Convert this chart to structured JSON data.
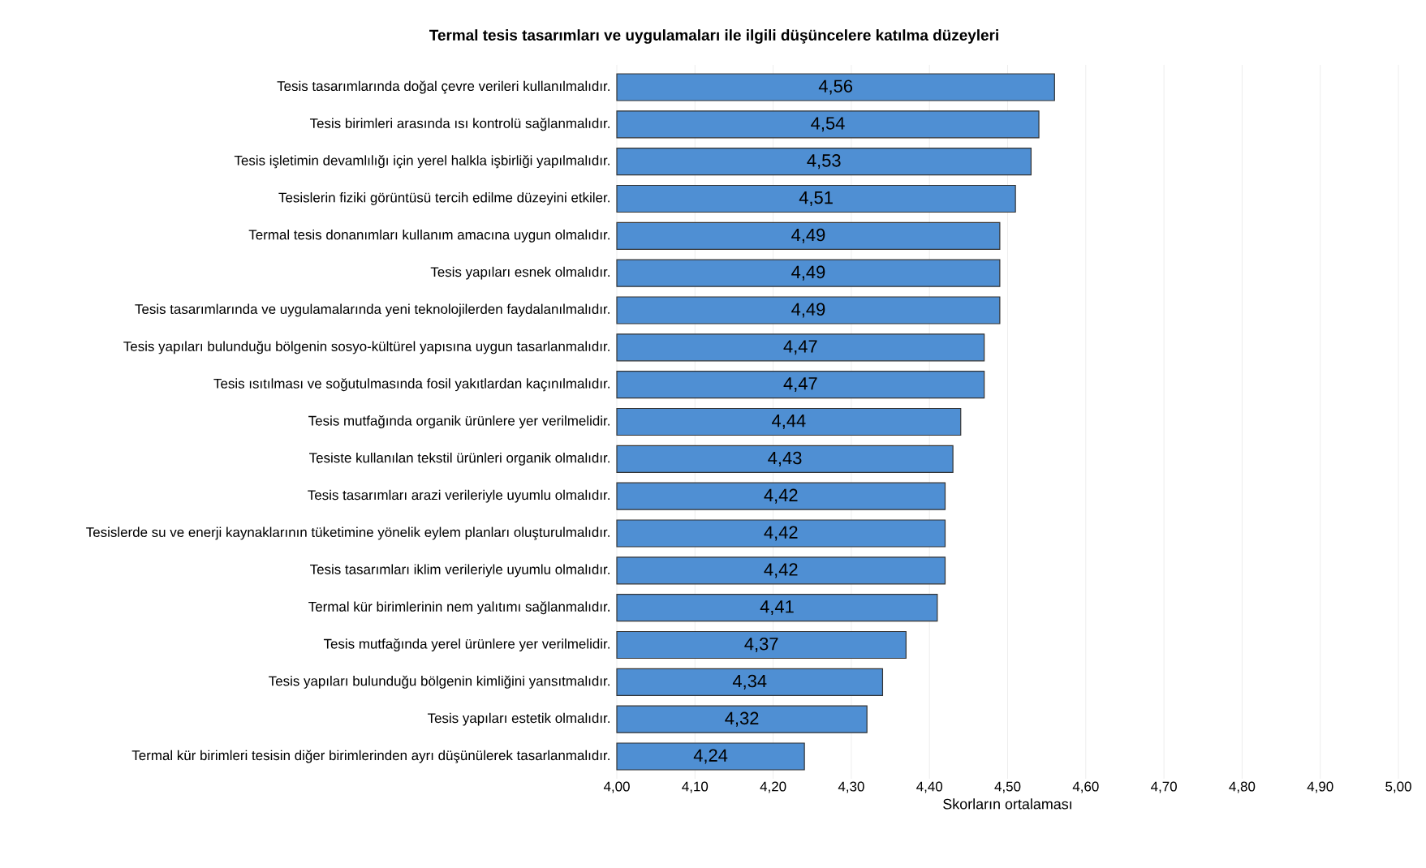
{
  "chart_data": {
    "type": "bar",
    "orientation": "horizontal",
    "title": "Termal  tesis tasarımları ve uygulamaları ile ilgili düşüncelere katılma düzeyleri",
    "xlabel": "Skorların ortalaması",
    "categories": [
      "Tesis tasarımlarında doğal çevre verileri kullanılmalıdır.",
      "Tesis birimleri arasında ısı kontrolü sağlanmalıdır.",
      "Tesis işletimin devamlılığı için yerel halkla işbirliği yapılmalıdır.",
      "Tesislerin fiziki görüntüsü tercih edilme düzeyini etkiler.",
      "Termal tesis donanımları kullanım amacına uygun olmalıdır.",
      "Tesis yapıları esnek olmalıdır.",
      "Tesis tasarımlarında ve uygulamalarında yeni teknolojilerden faydalanılmalıdır.",
      "Tesis yapıları bulunduğu bölgenin sosyo-kültürel yapısına uygun tasarlanmalıdır.",
      "Tesis ısıtılması ve soğutulmasında fosil yakıtlardan kaçınılmalıdır.",
      "Tesis mutfağında organik ürünlere yer verilmelidir.",
      "Tesiste kullanılan tekstil ürünleri organik olmalıdır.",
      "Tesis tasarımları arazi verileriyle uyumlu olmalıdır.",
      "Tesislerde su ve enerji kaynaklarının tüketimine yönelik eylem planları oluşturulmalıdır.",
      "Tesis tasarımları iklim verileriyle uyumlu olmalıdır.",
      "Termal kür birimlerinin nem yalıtımı sağlanmalıdır.",
      "Tesis mutfağında yerel ürünlere yer verilmelidir.",
      "Tesis yapıları bulunduğu bölgenin kimliğini yansıtmalıdır.",
      "Tesis yapıları estetik olmalıdır.",
      "Termal kür birimleri tesisin diğer birimlerinden ayrı düşünülerek tasarlanmalıdır."
    ],
    "values": [
      4.56,
      4.54,
      4.53,
      4.51,
      4.49,
      4.49,
      4.49,
      4.47,
      4.47,
      4.44,
      4.43,
      4.42,
      4.42,
      4.42,
      4.41,
      4.37,
      4.34,
      4.32,
      4.24
    ],
    "value_labels": [
      "4,56",
      "4,54",
      "4,53",
      "4,51",
      "4,49",
      "4,49",
      "4,49",
      "4,47",
      "4,47",
      "4,44",
      "4,43",
      "4,42",
      "4,42",
      "4,42",
      "4,41",
      "4,37",
      "4,34",
      "4,32",
      "4,24"
    ],
    "color": "#4f8fd3",
    "xlim": [
      4.0,
      5.0
    ],
    "xticks": [
      {
        "value": 4.0,
        "label": "4,00"
      },
      {
        "value": 4.1,
        "label": "4,10"
      },
      {
        "value": 4.2,
        "label": "4,20"
      },
      {
        "value": 4.3,
        "label": "4,30"
      },
      {
        "value": 4.4,
        "label": "4,40"
      },
      {
        "value": 4.5,
        "label": "4,50"
      },
      {
        "value": 4.6,
        "label": "4,60"
      },
      {
        "value": 4.7,
        "label": "4,70"
      },
      {
        "value": 4.8,
        "label": "4,80"
      },
      {
        "value": 4.9,
        "label": "4,90"
      },
      {
        "value": 5.0,
        "label": "5,00"
      }
    ],
    "grid": "x"
  }
}
